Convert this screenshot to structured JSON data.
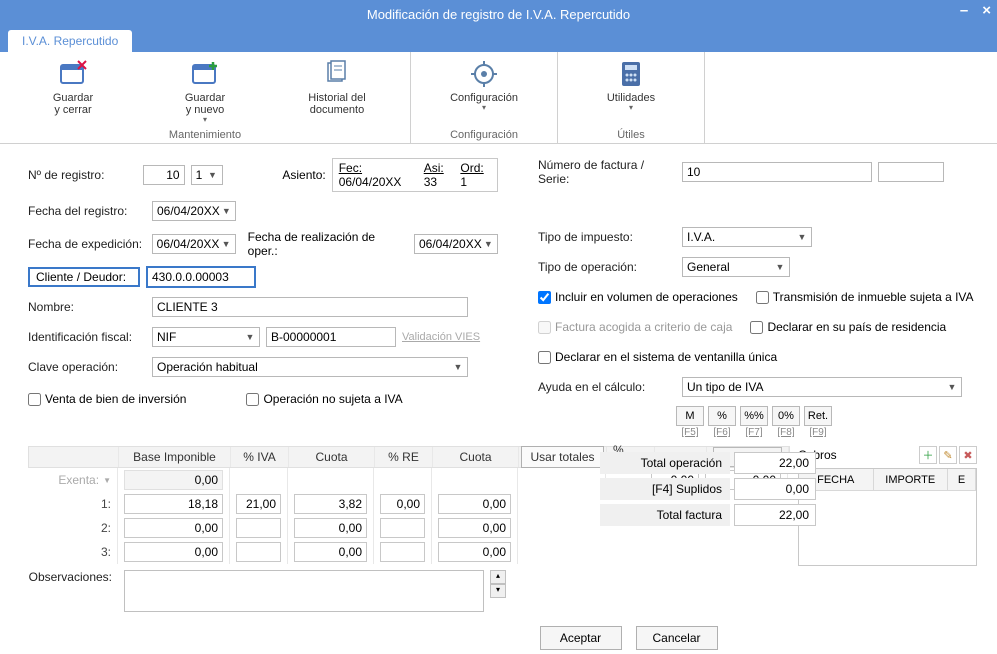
{
  "window": {
    "title": "Modificación de registro de I.V.A. Repercutido"
  },
  "tab": {
    "label": "I.V.A. Repercutido"
  },
  "ribbon": {
    "maintenance": {
      "caption": "Mantenimiento",
      "save_close": "Guardar\ny cerrar",
      "save_new": "Guardar\ny nuevo",
      "history": "Historial del\ndocumento"
    },
    "config": {
      "caption": "Configuración",
      "config": "Configuración"
    },
    "utils": {
      "caption": "Útiles",
      "utilities": "Utilidades"
    }
  },
  "form": {
    "nregistro_label": "Nº de registro:",
    "nregistro_value": "10",
    "nregistro_sub": "1",
    "fecha_registro_label": "Fecha del registro:",
    "fecha_registro_value": "06/04/20XX",
    "fecha_exped_label": "Fecha de expedición:",
    "fecha_exped_value": "06/04/20XX",
    "fecha_realiz_label": "Fecha de realización de oper.:",
    "fecha_realiz_value": "06/04/20XX",
    "cliente_label": "Cliente / Deudor:",
    "cliente_value": "430.0.0.00003",
    "nombre_label": "Nombre:",
    "nombre_value": "CLIENTE 3",
    "ident_label": "Identificación fiscal:",
    "ident_type": "NIF",
    "ident_value": "B-00000001",
    "validacion_vies": "Validación VIES",
    "clave_label": "Clave operación:",
    "clave_value": "Operación habitual",
    "venta_inversion": "Venta de bien de inversión",
    "op_no_sujeta": "Operación no sujeta a IVA",
    "asiento_label": "Asiento:",
    "asiento_fec_l": "Fec:",
    "asiento_fec_v": "06/04/20XX",
    "asiento_asi_l": "Asi:",
    "asiento_asi_v": "33",
    "asiento_ord_l": "Ord:",
    "asiento_ord_v": "1",
    "nfactura_label": "Número de factura / Serie:",
    "nfactura_value": "10",
    "tipo_imp_label": "Tipo de impuesto:",
    "tipo_imp_value": "I.V.A.",
    "tipo_op_label": "Tipo de operación:",
    "tipo_op_value": "General",
    "incluir_vol": "Incluir en volumen de operaciones",
    "transmision": "Transmisión de inmueble sujeta a IVA",
    "criterio_caja": "Factura acogida a criterio de caja",
    "declarar_pais": "Declarar en su país de residencia",
    "ventanilla": "Declarar en el sistema de ventanilla única",
    "ayuda_label": "Ayuda en el cálculo:",
    "ayuda_value": "Un tipo de IVA",
    "mini": {
      "m": "M",
      "pct": "%",
      "pctpct": "%%",
      "zeropct": "0%",
      "ret": "Ret.",
      "f5": "[F5]",
      "f6": "[F6]",
      "f7": "[F7]",
      "f8": "[F8]",
      "f9": "[F9]"
    }
  },
  "grid": {
    "headers": {
      "base": "Base Imponible",
      "iva": "% IVA",
      "cuota": "Cuota",
      "re": "% RE",
      "cuota2": "Cuota",
      "usar": "Usar totales",
      "irpf": "% IRPF"
    },
    "exenta_label": "Exenta:",
    "exenta_base": "0,00",
    "rows": [
      {
        "label": "1:",
        "base": "18,18",
        "iva": "21,00",
        "cuota": "3,82",
        "re": "0,00",
        "cuota2": "0,00"
      },
      {
        "label": "2:",
        "base": "0,00",
        "iva": "",
        "cuota": "0,00",
        "re": "",
        "cuota2": "0,00"
      },
      {
        "label": "3:",
        "base": "0,00",
        "iva": "",
        "cuota": "0,00",
        "re": "",
        "cuota2": "0,00"
      }
    ],
    "irpf_val": "0,00",
    "irpf_amt": "0,00",
    "totals": {
      "op_label": "Total operación",
      "op_val": "22,00",
      "supl_label": "[F4] Suplidos",
      "supl_val": "0,00",
      "fac_label": "Total factura",
      "fac_val": "22,00"
    },
    "obs_label": "Observaciones:"
  },
  "cobros": {
    "title": "Cobros",
    "fecha": "FECHA",
    "importe": "IMPORTE",
    "e": "E"
  },
  "dialog": {
    "ok": "Aceptar",
    "cancel": "Cancelar"
  }
}
